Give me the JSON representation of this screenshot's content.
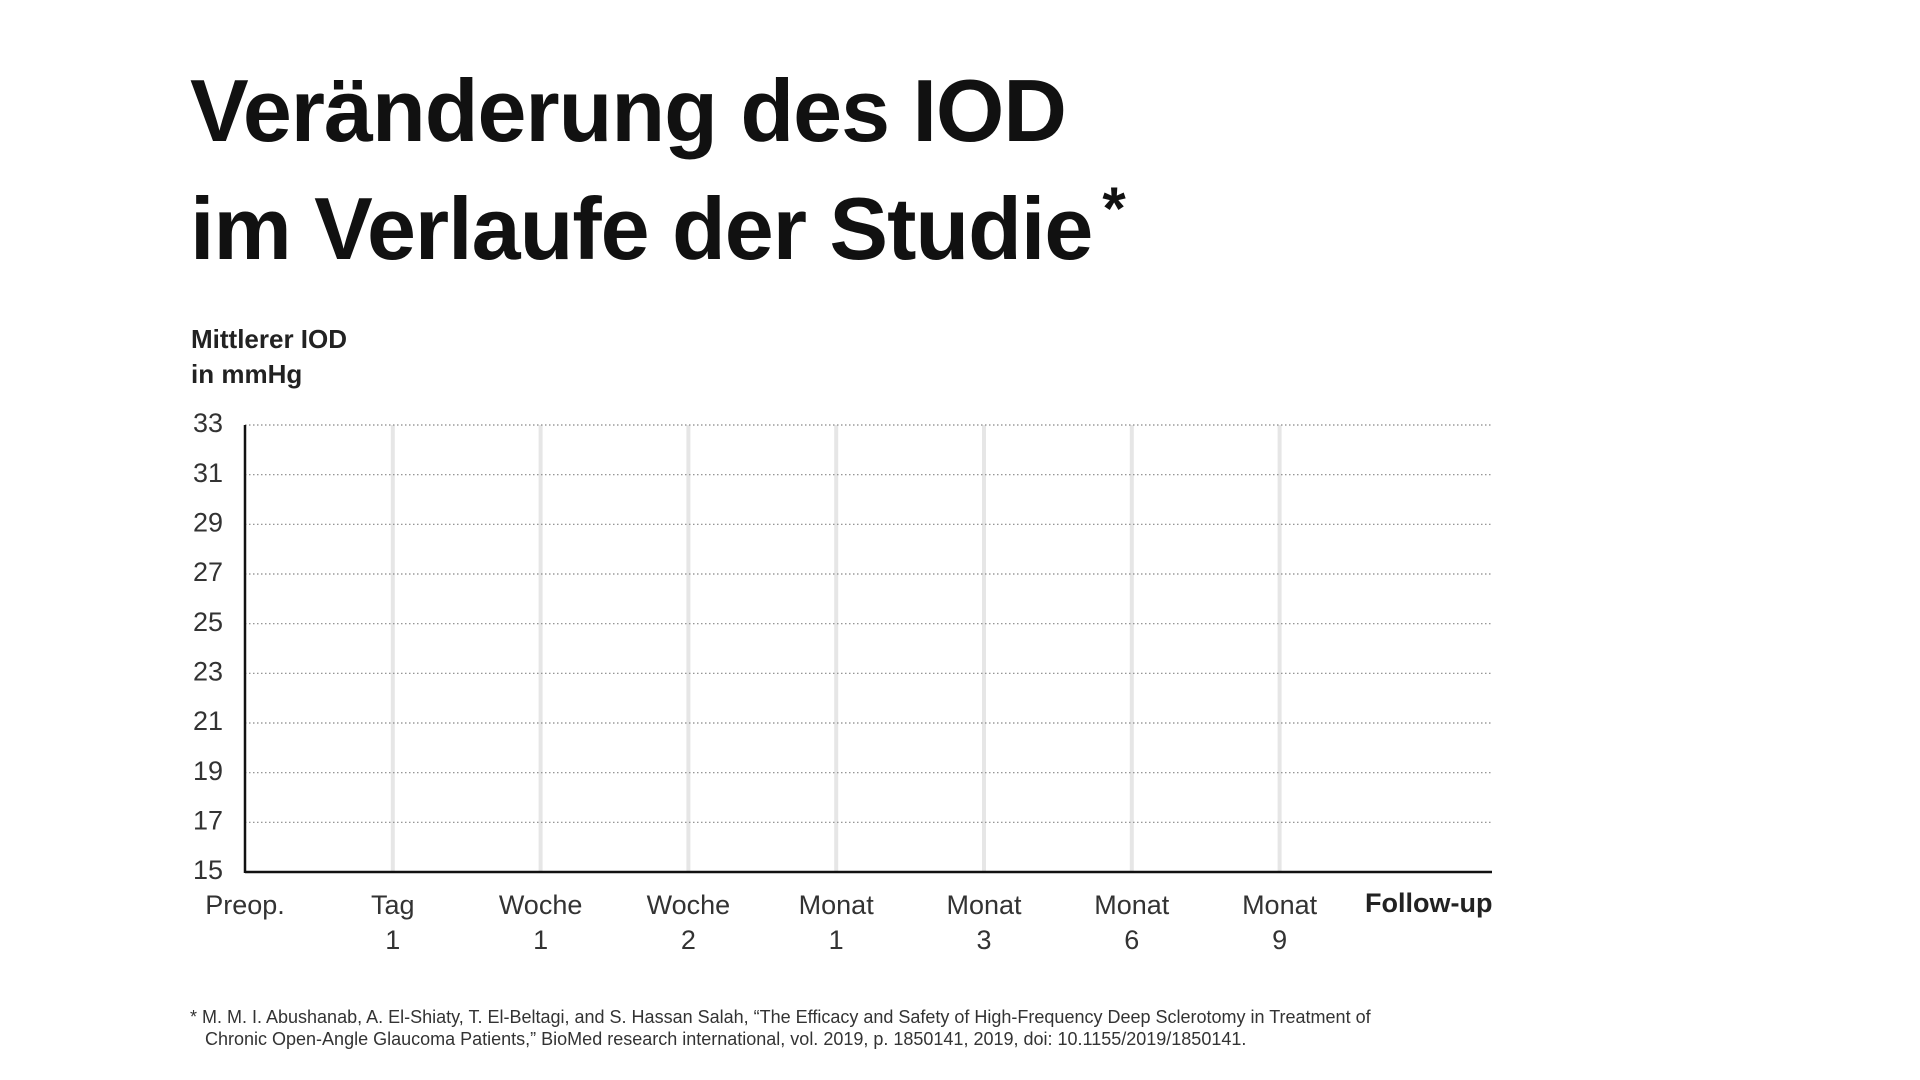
{
  "chart_data": {
    "type": "line",
    "title": "Veränderung des IOD\nim Verlaufe der Studie",
    "title_marker": "*",
    "y_label": "Mittlerer IOD\nin mmHg",
    "x_label": "Follow-up",
    "categories": [
      "Preop.",
      "Tag\n1",
      "Woche\n1",
      "Woche\n2",
      "Monat\n1",
      "Monat\n3",
      "Monat\n6",
      "Monat\n9"
    ],
    "series": [],
    "ylim": [
      15,
      33
    ],
    "yticks": [
      15,
      17,
      19,
      21,
      23,
      25,
      27,
      29,
      31,
      33
    ],
    "grid": true,
    "footnote": "* M. M. I. Abushanab, A. El-Shiaty, T. El-Beltagi, and S. Hassan Salah, “The Efficacy and Safety of High-Frequency Deep Sclerotomy in Treatment of\n   Chronic Open-Angle Glaucoma Patients,” BioMed research international, vol. 2019, p. 1850141, 2019, doi: 10.1155/2019/1850141."
  }
}
